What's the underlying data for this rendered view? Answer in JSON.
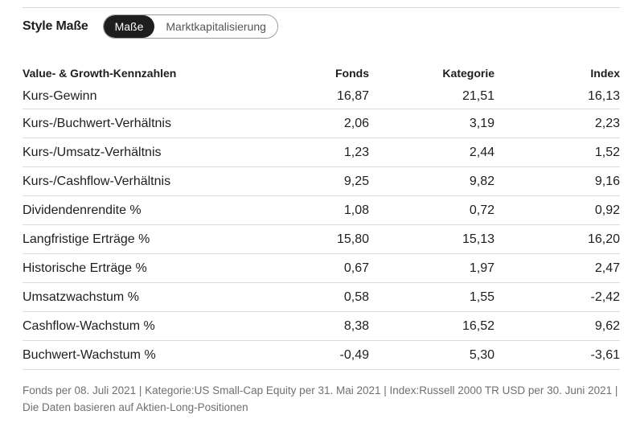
{
  "header": {
    "title": "Style Maße",
    "toggle": [
      "Maße",
      "Marktkapitalisierung"
    ],
    "active": "Maße"
  },
  "table": {
    "columns": [
      "Value- & Growth-Kennzahlen",
      "Fonds",
      "Kategorie",
      "Index"
    ],
    "rows": [
      {
        "label": "Kurs-Gewinn",
        "fonds": "16,87",
        "kategorie": "21,51",
        "index": "16,13"
      },
      {
        "label": "Kurs-/Buchwert-Verhältnis",
        "fonds": "2,06",
        "kategorie": "3,19",
        "index": "2,23"
      },
      {
        "label": "Kurs-/Umsatz-Verhältnis",
        "fonds": "1,23",
        "kategorie": "2,44",
        "index": "1,52"
      },
      {
        "label": "Kurs-/Cashflow-Verhältnis",
        "fonds": "9,25",
        "kategorie": "9,82",
        "index": "9,16"
      },
      {
        "label": "Dividendenrendite %",
        "fonds": "1,08",
        "kategorie": "0,72",
        "index": "0,92"
      },
      {
        "label": "Langfristige Erträge %",
        "fonds": "15,80",
        "kategorie": "15,13",
        "index": "16,20"
      },
      {
        "label": "Historische Erträge %",
        "fonds": "0,67",
        "kategorie": "1,97",
        "index": "2,47"
      },
      {
        "label": "Umsatzwachstum %",
        "fonds": "0,58",
        "kategorie": "1,55",
        "index": "-2,42"
      },
      {
        "label": "Cashflow-Wachstum %",
        "fonds": "8,38",
        "kategorie": "16,52",
        "index": "9,62"
      },
      {
        "label": "Buchwert-Wachstum %",
        "fonds": "-0,49",
        "kategorie": "5,30",
        "index": "-3,61"
      }
    ]
  },
  "footnote": "Fonds per 08. Juli 2021 | Kategorie:US Small-Cap Equity per 31. Mai 2021 | Index:Russell 2000 TR USD per 30. Juni 2021 | Die Daten basieren auf Aktien-Long-Positionen"
}
